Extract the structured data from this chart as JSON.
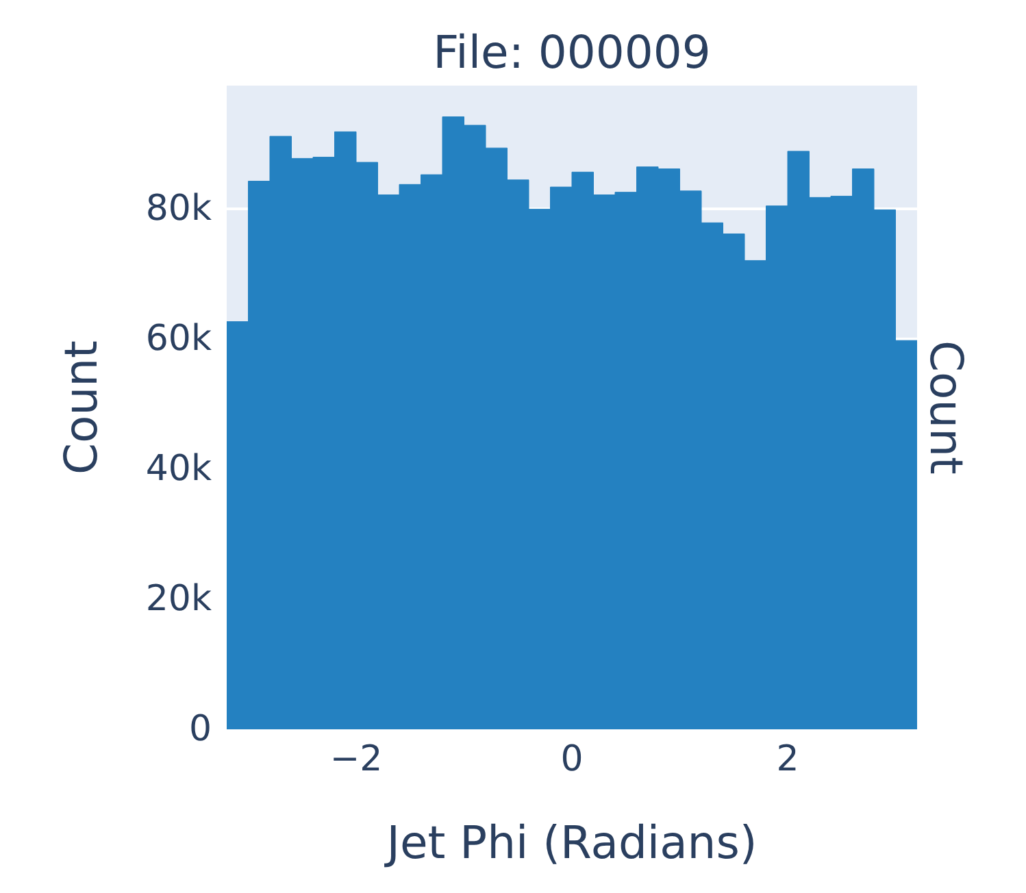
{
  "chart_data": {
    "type": "histogram",
    "title": "File: 000009",
    "xlabel": "Jet Phi (Radians)",
    "ylabel": "Count",
    "y2label": "Count",
    "bins": [
      -3.2,
      -3.0,
      -2.8,
      -2.6,
      -2.4,
      -2.2,
      -2.0,
      -1.8,
      -1.6,
      -1.4,
      -1.2,
      -1.0,
      -0.8,
      -0.6,
      -0.4,
      -0.2,
      0.0,
      0.2,
      0.4,
      0.6,
      0.8,
      1.0,
      1.2,
      1.4,
      1.6,
      1.8,
      2.0,
      2.2,
      2.4,
      2.6,
      2.8,
      3.0,
      3.2
    ],
    "values": [
      62700,
      84300,
      91200,
      87800,
      88000,
      91900,
      87200,
      82200,
      83800,
      85300,
      94200,
      92900,
      89400,
      84500,
      80000,
      83400,
      85700,
      82200,
      82600,
      86500,
      86200,
      82800,
      77900,
      76200,
      72100,
      80500,
      88900,
      81800,
      82000,
      86200,
      79900,
      59800
    ],
    "color": "#2481c1",
    "xlim": [
      -3.2,
      3.2
    ],
    "xticks": [
      {
        "value": -2,
        "label": "−2"
      },
      0,
      2
    ],
    "ylim": [
      0,
      99000
    ],
    "yticks": [
      0,
      {
        "value": 20000,
        "label": "20k"
      },
      {
        "value": 40000,
        "label": "40k"
      },
      {
        "value": 60000,
        "label": "60k"
      },
      {
        "value": 80000,
        "label": "80k"
      }
    ],
    "grid": "y"
  }
}
